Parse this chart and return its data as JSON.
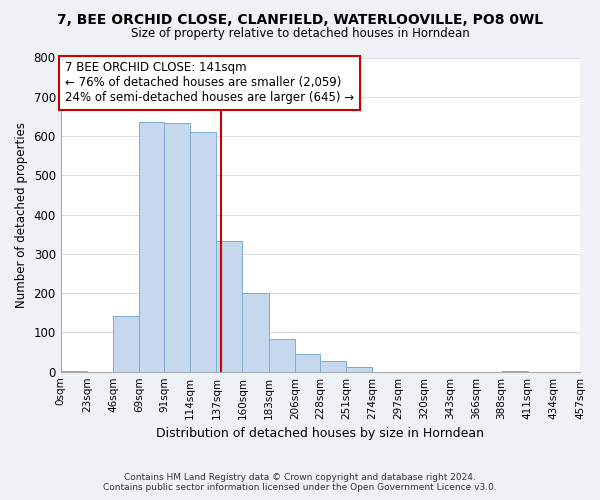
{
  "title": "7, BEE ORCHID CLOSE, CLANFIELD, WATERLOOVILLE, PO8 0WL",
  "subtitle": "Size of property relative to detached houses in Horndean",
  "xlabel": "Distribution of detached houses by size in Horndean",
  "ylabel": "Number of detached properties",
  "bar_edges": [
    0,
    23,
    46,
    69,
    91,
    114,
    137,
    160,
    183,
    206,
    228,
    251,
    274,
    297,
    320,
    343,
    366,
    388,
    411,
    434,
    457
  ],
  "bar_heights": [
    2,
    0,
    143,
    635,
    632,
    610,
    332,
    201,
    84,
    46,
    27,
    13,
    0,
    0,
    0,
    0,
    0,
    3,
    0,
    0
  ],
  "tick_labels": [
    "0sqm",
    "23sqm",
    "46sqm",
    "69sqm",
    "91sqm",
    "114sqm",
    "137sqm",
    "160sqm",
    "183sqm",
    "206sqm",
    "228sqm",
    "251sqm",
    "274sqm",
    "297sqm",
    "320sqm",
    "343sqm",
    "366sqm",
    "388sqm",
    "411sqm",
    "434sqm",
    "457sqm"
  ],
  "bar_color": "#c5d8ed",
  "bar_edge_color": "#7aadd4",
  "vline_x": 141,
  "vline_color": "#cc0000",
  "box_text_line1": "7 BEE ORCHID CLOSE: 141sqm",
  "box_text_line2": "← 76% of detached houses are smaller (2,059)",
  "box_text_line3": "24% of semi-detached houses are larger (645) →",
  "box_color": "#ffffff",
  "box_edge_color": "#cc0000",
  "ylim": [
    0,
    800
  ],
  "yticks": [
    0,
    100,
    200,
    300,
    400,
    500,
    600,
    700,
    800
  ],
  "footer_line1": "Contains HM Land Registry data © Crown copyright and database right 2024.",
  "footer_line2": "Contains public sector information licensed under the Open Government Licence v3.0.",
  "bg_color": "#eef2f7",
  "plot_bg_color": "#ffffff"
}
